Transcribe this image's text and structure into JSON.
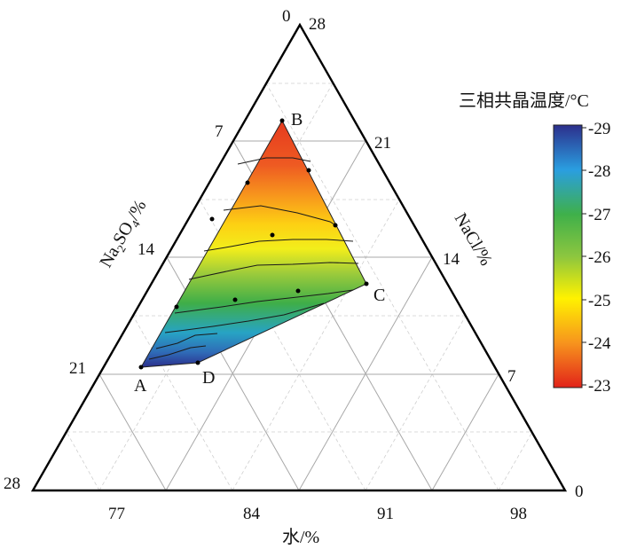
{
  "chart_data": {
    "type": "ternary-contour",
    "axes": {
      "water": {
        "label": "水/%",
        "ticks": [
          "77",
          "84",
          "91",
          "98"
        ],
        "corner_label": "0"
      },
      "na2so4": {
        "label": "Na2SO4/%",
        "label_parts": [
          "Na",
          "2",
          "SO",
          "4",
          "/%"
        ],
        "ticks": [
          "7",
          "14",
          "21"
        ],
        "corner_label": "28"
      },
      "nacl": {
        "label": "NaCl/%",
        "ticks": [
          "21",
          "14",
          "7"
        ],
        "corner_label": "28"
      },
      "apex_label": "0"
    },
    "points": [
      {
        "name": "A",
        "label": "A"
      },
      {
        "name": "B",
        "label": "B"
      },
      {
        "name": "C",
        "label": "C"
      },
      {
        "name": "D",
        "label": "D"
      }
    ],
    "colorbar": {
      "title": "三相共晶温度/°C",
      "ticks": [
        "-29",
        "-28",
        "-27",
        "-26",
        "-25",
        "-24",
        "-23"
      ],
      "range": [
        -29,
        -23
      ],
      "colors": [
        "#2c2f8c",
        "#2a9ee0",
        "#3fb04a",
        "#8cc63f",
        "#fff200",
        "#f7941d",
        "#e2231a"
      ]
    },
    "grid": true
  }
}
